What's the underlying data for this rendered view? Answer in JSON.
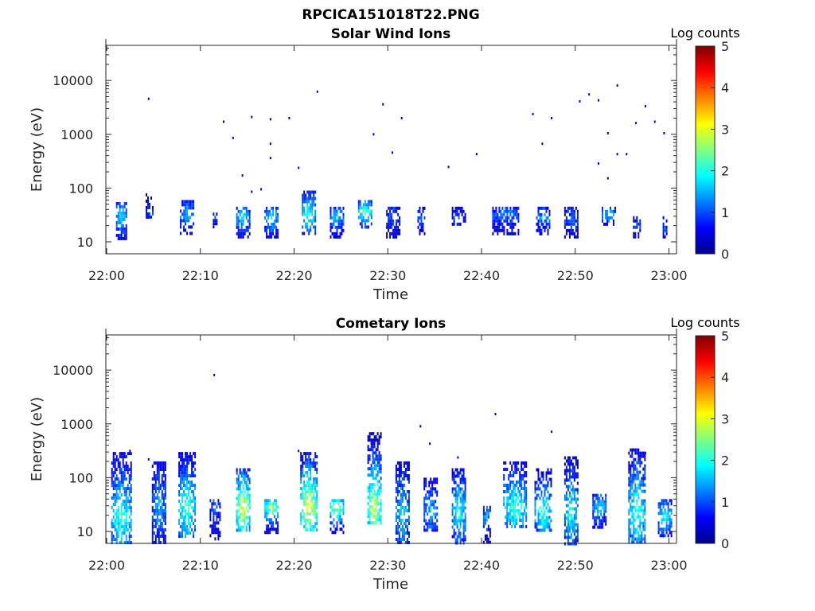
{
  "figure_title": "RPCICA151018T22.PNG",
  "colors": {
    "colormap": [
      "#00008f",
      "#0000ff",
      "#0080ff",
      "#00ffff",
      "#80ff80",
      "#ffff00",
      "#ff8000",
      "#ff0000",
      "#800000"
    ],
    "axis": "#262626",
    "background": "#ffffff"
  },
  "chart_data": [
    {
      "type": "heatmap",
      "title": "Solar Wind Ions",
      "xlabel": "Time",
      "ylabel": "Energy (eV)",
      "x_ticks": [
        "22:00",
        "22:10",
        "22:20",
        "22:30",
        "22:40",
        "22:50",
        "23:00"
      ],
      "xlim": [
        "22:00",
        "23:00"
      ],
      "y_scale": "log",
      "y_ticks": [
        "10",
        "100",
        "1000",
        "10000"
      ],
      "ylim": [
        6,
        45000
      ],
      "colorbar": {
        "label": "Log counts",
        "range": [
          0,
          5
        ],
        "ticks": [
          "0",
          "1",
          "2",
          "3",
          "4",
          "5"
        ]
      },
      "background_counts": [
        {
          "t": "22:04",
          "e": 4800,
          "v": 0.4
        },
        {
          "t": "22:12",
          "e": 1800,
          "v": 0.4
        },
        {
          "t": "22:13",
          "e": 900,
          "v": 0.4
        },
        {
          "t": "22:14",
          "e": 180,
          "v": 0.4
        },
        {
          "t": "22:15",
          "e": 2200,
          "v": 0.4
        },
        {
          "t": "22:15",
          "e": 90,
          "v": 0.4
        },
        {
          "t": "22:16",
          "e": 100,
          "v": 0.4
        },
        {
          "t": "22:17",
          "e": 2000,
          "v": 0.4
        },
        {
          "t": "22:17",
          "e": 700,
          "v": 0.4
        },
        {
          "t": "22:17",
          "e": 380,
          "v": 0.4
        },
        {
          "t": "22:19",
          "e": 2100,
          "v": 0.4
        },
        {
          "t": "22:20",
          "e": 250,
          "v": 0.4
        },
        {
          "t": "22:22",
          "e": 6500,
          "v": 0.4
        },
        {
          "t": "22:28",
          "e": 1050,
          "v": 0.4
        },
        {
          "t": "22:29",
          "e": 3800,
          "v": 0.4
        },
        {
          "t": "22:30",
          "e": 480,
          "v": 0.4
        },
        {
          "t": "22:31",
          "e": 2100,
          "v": 0.4
        },
        {
          "t": "22:36",
          "e": 260,
          "v": 0.4
        },
        {
          "t": "22:39",
          "e": 450,
          "v": 0.4
        },
        {
          "t": "22:45",
          "e": 2500,
          "v": 0.4
        },
        {
          "t": "22:46",
          "e": 700,
          "v": 0.4
        },
        {
          "t": "22:47",
          "e": 2100,
          "v": 0.4
        },
        {
          "t": "22:50",
          "e": 4300,
          "v": 0.4
        },
        {
          "t": "22:51",
          "e": 5800,
          "v": 0.4
        },
        {
          "t": "22:52",
          "e": 4500,
          "v": 0.4
        },
        {
          "t": "22:52",
          "e": 300,
          "v": 0.4
        },
        {
          "t": "22:53",
          "e": 1100,
          "v": 0.4
        },
        {
          "t": "22:53",
          "e": 160,
          "v": 0.4
        },
        {
          "t": "22:54",
          "e": 8500,
          "v": 0.4
        },
        {
          "t": "22:54",
          "e": 450,
          "v": 0.4
        },
        {
          "t": "22:55",
          "e": 450,
          "v": 0.4
        },
        {
          "t": "22:56",
          "e": 1700,
          "v": 0.4
        },
        {
          "t": "22:57",
          "e": 3500,
          "v": 0.4
        },
        {
          "t": "22:58",
          "e": 1800,
          "v": 0.4
        },
        {
          "t": "22:59",
          "e": 1100,
          "v": 0.4
        }
      ],
      "bursts": [
        {
          "t": "22:01",
          "e_low": 12,
          "e_peak": 30,
          "e_high": 55,
          "v": 1.8,
          "dur_min": 1.0
        },
        {
          "t": "22:04",
          "e_low": 30,
          "e_peak": 38,
          "e_high": 80,
          "v": 1.2,
          "dur_min": 0.8
        },
        {
          "t": "22:08",
          "e_low": 15,
          "e_peak": 35,
          "e_high": 60,
          "v": 1.6,
          "dur_min": 1.2
        },
        {
          "t": "22:11",
          "e_low": 20,
          "e_peak": 30,
          "e_high": 35,
          "v": 1.0,
          "dur_min": 0.4
        },
        {
          "t": "22:14",
          "e_low": 12,
          "e_peak": 30,
          "e_high": 45,
          "v": 1.8,
          "dur_min": 1.2
        },
        {
          "t": "22:17",
          "e_low": 12,
          "e_peak": 30,
          "e_high": 45,
          "v": 1.9,
          "dur_min": 1.2
        },
        {
          "t": "22:21",
          "e_low": 14,
          "e_peak": 35,
          "e_high": 90,
          "v": 2.1,
          "dur_min": 1.3
        },
        {
          "t": "22:24",
          "e_low": 13,
          "e_peak": 30,
          "e_high": 45,
          "v": 1.7,
          "dur_min": 1.2
        },
        {
          "t": "22:27",
          "e_low": 20,
          "e_peak": 38,
          "e_high": 60,
          "v": 2.5,
          "dur_min": 1.2
        },
        {
          "t": "22:30",
          "e_low": 12,
          "e_peak": 30,
          "e_high": 45,
          "v": 1.1,
          "dur_min": 1.2
        },
        {
          "t": "22:33",
          "e_low": 12,
          "e_peak": 30,
          "e_high": 45,
          "v": 1.0,
          "dur_min": 0.8
        },
        {
          "t": "22:37",
          "e_low": 20,
          "e_peak": 30,
          "e_high": 45,
          "v": 1.0,
          "dur_min": 1.3
        },
        {
          "t": "22:42",
          "e_low": 14,
          "e_peak": 35,
          "e_high": 45,
          "v": 1.3,
          "dur_min": 2.8
        },
        {
          "t": "22:46",
          "e_low": 14,
          "e_peak": 30,
          "e_high": 45,
          "v": 1.5,
          "dur_min": 1.5
        },
        {
          "t": "22:49",
          "e_low": 12,
          "e_peak": 30,
          "e_high": 45,
          "v": 1.2,
          "dur_min": 1.4
        },
        {
          "t": "22:53",
          "e_low": 20,
          "e_peak": 35,
          "e_high": 45,
          "v": 1.8,
          "dur_min": 1.2
        },
        {
          "t": "22:56",
          "e_low": 12,
          "e_peak": 20,
          "e_high": 30,
          "v": 1.0,
          "dur_min": 0.8
        },
        {
          "t": "22:59",
          "e_low": 12,
          "e_peak": 20,
          "e_high": 30,
          "v": 1.0,
          "dur_min": 0.5
        }
      ]
    },
    {
      "type": "heatmap",
      "title": "Cometary Ions",
      "xlabel": "Time",
      "ylabel": "Energy (eV)",
      "x_ticks": [
        "22:00",
        "22:10",
        "22:20",
        "22:30",
        "22:40",
        "22:50",
        "23:00"
      ],
      "xlim": [
        "22:00",
        "23:00"
      ],
      "y_scale": "log",
      "y_ticks": [
        "10",
        "100",
        "1000",
        "10000"
      ],
      "ylim": [
        6,
        45000
      ],
      "colorbar": {
        "label": "Log counts",
        "range": [
          0,
          5
        ],
        "ticks": [
          "0",
          "1",
          "2",
          "3",
          "4",
          "5"
        ]
      },
      "background_counts": [
        {
          "t": "22:11",
          "e": 8500,
          "v": 0.4
        },
        {
          "t": "22:28",
          "e": 700,
          "v": 0.5
        },
        {
          "t": "22:33",
          "e": 950,
          "v": 0.4
        },
        {
          "t": "22:34",
          "e": 450,
          "v": 0.4
        },
        {
          "t": "22:41",
          "e": 1600,
          "v": 0.4
        },
        {
          "t": "22:47",
          "e": 750,
          "v": 0.4
        },
        {
          "t": "22:02",
          "e": 330,
          "v": 0.4
        },
        {
          "t": "22:04",
          "e": 230,
          "v": 0.4
        },
        {
          "t": "22:20",
          "e": 330,
          "v": 0.4
        },
        {
          "t": "22:37",
          "e": 250,
          "v": 0.4
        },
        {
          "t": "22:57",
          "e": 300,
          "v": 0.4
        }
      ],
      "bursts": [
        {
          "t": "22:01",
          "e_low": 6,
          "e_peak": 20,
          "e_high": 300,
          "v": 2.2,
          "dur_min": 2.0
        },
        {
          "t": "22:05",
          "e_low": 6,
          "e_peak": 30,
          "e_high": 200,
          "v": 1.5,
          "dur_min": 1.3
        },
        {
          "t": "22:08",
          "e_low": 8,
          "e_peak": 30,
          "e_high": 300,
          "v": 2.3,
          "dur_min": 1.6
        },
        {
          "t": "22:11",
          "e_low": 6,
          "e_peak": 30,
          "e_high": 40,
          "v": 1.2,
          "dur_min": 1.0
        },
        {
          "t": "22:14",
          "e_low": 10,
          "e_peak": 30,
          "e_high": 150,
          "v": 3.2,
          "dur_min": 1.5
        },
        {
          "t": "22:17",
          "e_low": 10,
          "e_peak": 30,
          "e_high": 40,
          "v": 2.7,
          "dur_min": 1.3
        },
        {
          "t": "22:21",
          "e_low": 10,
          "e_peak": 30,
          "e_high": 300,
          "v": 3.2,
          "dur_min": 1.6
        },
        {
          "t": "22:24",
          "e_low": 10,
          "e_peak": 30,
          "e_high": 40,
          "v": 2.8,
          "dur_min": 1.5
        },
        {
          "t": "22:28",
          "e_low": 15,
          "e_peak": 30,
          "e_high": 700,
          "v": 3.0,
          "dur_min": 1.5
        },
        {
          "t": "22:31",
          "e_low": 6,
          "e_peak": 25,
          "e_high": 200,
          "v": 1.8,
          "dur_min": 1.5
        },
        {
          "t": "22:34",
          "e_low": 10,
          "e_peak": 25,
          "e_high": 100,
          "v": 1.6,
          "dur_min": 1.5
        },
        {
          "t": "22:37",
          "e_low": 6,
          "e_peak": 25,
          "e_high": 150,
          "v": 2.0,
          "dur_min": 1.3
        },
        {
          "t": "22:40",
          "e_low": 6,
          "e_peak": 20,
          "e_high": 30,
          "v": 1.5,
          "dur_min": 0.7
        },
        {
          "t": "22:43",
          "e_low": 12,
          "e_peak": 30,
          "e_high": 200,
          "v": 2.3,
          "dur_min": 2.5
        },
        {
          "t": "22:46",
          "e_low": 10,
          "e_peak": 25,
          "e_high": 150,
          "v": 2.2,
          "dur_min": 1.6
        },
        {
          "t": "22:49",
          "e_low": 6,
          "e_peak": 25,
          "e_high": 250,
          "v": 2.0,
          "dur_min": 1.4
        },
        {
          "t": "22:52",
          "e_low": 12,
          "e_peak": 30,
          "e_high": 50,
          "v": 1.8,
          "dur_min": 1.3
        },
        {
          "t": "22:56",
          "e_low": 6,
          "e_peak": 25,
          "e_high": 350,
          "v": 2.2,
          "dur_min": 1.6
        },
        {
          "t": "22:59",
          "e_low": 8,
          "e_peak": 20,
          "e_high": 40,
          "v": 2.0,
          "dur_min": 1.2
        }
      ]
    }
  ]
}
